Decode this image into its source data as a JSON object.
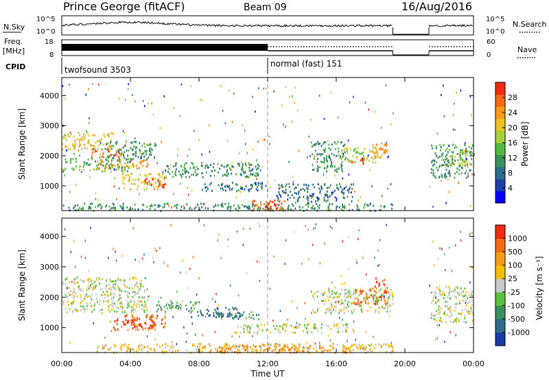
{
  "header": {
    "station": "Prince George (fitACF)",
    "beam": "Beam 09",
    "date": "16/Aug/2016"
  },
  "noise_panel": {
    "left_label": "N.Sky",
    "left_ticks": [
      "10^5",
      "10^0"
    ],
    "right_label": "N.Search",
    "right_ticks": [
      "10^5",
      "10^0"
    ]
  },
  "freq_panel": {
    "left_label_1": "Freq.",
    "left_label_2": "[MHz]",
    "left_ticks": [
      "18",
      "8"
    ],
    "right_label": "Nave",
    "right_ticks": [
      "60",
      "0"
    ]
  },
  "cpid_panel": {
    "label": "CPID",
    "modes": [
      {
        "name": "twofsound",
        "id": "3503",
        "start": "00:00"
      },
      {
        "name": "normal (fast)",
        "id": "151",
        "start": "12:00"
      }
    ],
    "mode_1_text": "twofsound 3503",
    "mode_2_text": "normal (fast) 151"
  },
  "x_axis": {
    "label": "Time UT",
    "ticks": [
      "00:00",
      "04:00",
      "08:00",
      "12:00",
      "16:00",
      "20:00",
      "00:00"
    ],
    "range_hours": [
      0,
      24
    ]
  },
  "chart_data": [
    {
      "type": "heatmap",
      "name": "power",
      "ylabel": "Slant Range [km]",
      "yticks": [
        1000,
        2000,
        3000,
        4000
      ],
      "ylim": [
        180,
        4600
      ],
      "colorbar_label": "Power [dB]",
      "colorbar_ticks": [
        "28",
        "24",
        "20",
        "16",
        "12",
        "8",
        "4"
      ],
      "colorbar_colors": [
        "#0000ff",
        "#1f3fa8",
        "#2f6e8a",
        "#3a8f5a",
        "#52b83f",
        "#a8d040",
        "#f0c020",
        "#f59a1a",
        "#f56a10",
        "#ee2a10"
      ],
      "data_gap_hours": [
        19.3,
        21.4
      ],
      "regions": [
        {
          "t0": 0.0,
          "t1": 3.0,
          "r0": 2200,
          "r1": 2800,
          "level": 6
        },
        {
          "t0": 1.5,
          "t1": 3.5,
          "r0": 1950,
          "r1": 2250,
          "level": 8
        },
        {
          "t0": 0.0,
          "t1": 4.0,
          "r0": 1500,
          "r1": 1950,
          "level": 4
        },
        {
          "t0": 2.0,
          "t1": 5.0,
          "r0": 1600,
          "r1": 1900,
          "level": 7
        },
        {
          "t0": 3.5,
          "t1": 6.0,
          "r0": 900,
          "r1": 1450,
          "level": 6
        },
        {
          "t0": 4.8,
          "t1": 6.0,
          "r0": 950,
          "r1": 1300,
          "level": 9
        },
        {
          "t0": 2.5,
          "t1": 5.5,
          "r0": 1900,
          "r1": 2500,
          "level": 3
        },
        {
          "t0": 6.0,
          "t1": 11.5,
          "r0": 1300,
          "r1": 1800,
          "level": 3
        },
        {
          "t0": 8.0,
          "t1": 12.0,
          "r0": 850,
          "r1": 1150,
          "level": 2
        },
        {
          "t0": 0.0,
          "t1": 19.3,
          "r0": 200,
          "r1": 450,
          "level": 3
        },
        {
          "t0": 11.0,
          "t1": 13.0,
          "r0": 200,
          "r1": 550,
          "level": 8
        },
        {
          "t0": 11.8,
          "t1": 12.6,
          "r0": 250,
          "r1": 500,
          "level": 9
        },
        {
          "t0": 12.5,
          "t1": 17.0,
          "r0": 500,
          "r1": 1100,
          "level": 2
        },
        {
          "t0": 14.5,
          "t1": 16.5,
          "r0": 1500,
          "r1": 2500,
          "level": 3
        },
        {
          "t0": 16.2,
          "t1": 18.5,
          "r0": 1800,
          "r1": 2300,
          "level": 5
        },
        {
          "t0": 16.8,
          "t1": 17.6,
          "r0": 1750,
          "r1": 2000,
          "level": 8
        },
        {
          "t0": 18.0,
          "t1": 19.2,
          "r0": 1950,
          "r1": 2450,
          "level": 7
        },
        {
          "t0": 21.5,
          "t1": 24.0,
          "r0": 1300,
          "r1": 2400,
          "level": 3
        },
        {
          "t0": 22.5,
          "t1": 24.0,
          "r0": 1700,
          "r1": 2200,
          "level": 5
        }
      ]
    },
    {
      "type": "heatmap",
      "name": "velocity",
      "ylabel": "Slant Range [km]",
      "yticks": [
        1000,
        2000,
        3000,
        4000
      ],
      "ylim": [
        180,
        4600
      ],
      "colorbar_label": "Velocity [m s⁻¹]",
      "colorbar_ticks": [
        "1000",
        "500",
        "100",
        "25",
        "-25",
        "-100",
        "-500",
        "-1000"
      ],
      "colorbar_colors": [
        "#1a3ca8",
        "#2f6e8a",
        "#3a8f5a",
        "#5cc040",
        "#c8c8c8",
        "#f5c000",
        "#f59a1a",
        "#f56a10",
        "#ee2a10"
      ],
      "data_gap_hours": [
        19.3,
        21.4
      ],
      "regions": [
        {
          "t0": 0.0,
          "t1": 5.0,
          "r0": 1500,
          "r1": 2700,
          "level": 4
        },
        {
          "t0": 3.0,
          "t1": 6.0,
          "r0": 950,
          "r1": 1450,
          "level": 7
        },
        {
          "t0": 3.5,
          "t1": 5.5,
          "r0": 1000,
          "r1": 1300,
          "level": 8
        },
        {
          "t0": 5.5,
          "t1": 8.0,
          "r0": 1500,
          "r1": 1900,
          "level": 3
        },
        {
          "t0": 7.5,
          "t1": 10.5,
          "r0": 1350,
          "r1": 1700,
          "level": 1
        },
        {
          "t0": 9.0,
          "t1": 11.5,
          "r0": 1300,
          "r1": 1550,
          "level": 2
        },
        {
          "t0": 2.0,
          "t1": 19.3,
          "r0": 200,
          "r1": 500,
          "level": 5
        },
        {
          "t0": 8.0,
          "t1": 17.0,
          "r0": 200,
          "r1": 450,
          "level": 6
        },
        {
          "t0": 10.0,
          "t1": 17.0,
          "r0": 850,
          "r1": 1150,
          "level": 4
        },
        {
          "t0": 14.5,
          "t1": 19.3,
          "r0": 1500,
          "r1": 2300,
          "level": 4
        },
        {
          "t0": 17.0,
          "t1": 19.0,
          "r0": 1800,
          "r1": 2350,
          "level": 7
        },
        {
          "t0": 18.2,
          "t1": 18.8,
          "r0": 2350,
          "r1": 2700,
          "level": 8
        },
        {
          "t0": 21.5,
          "t1": 24.0,
          "r0": 1200,
          "r1": 2400,
          "level": 4
        }
      ]
    }
  ]
}
